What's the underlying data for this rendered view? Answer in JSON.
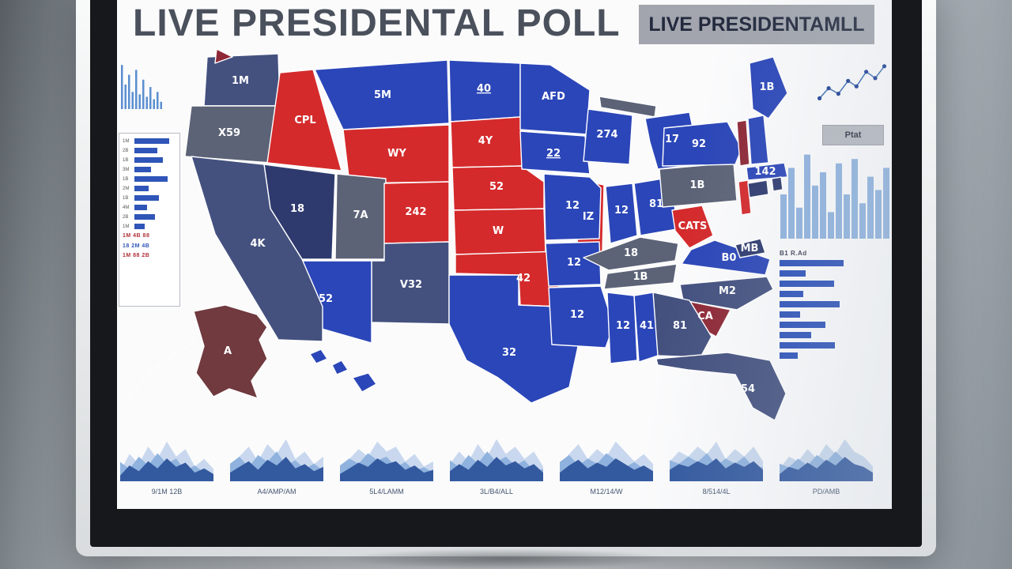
{
  "screen": {
    "title": "LIVE PRESIDENTAL POLL",
    "header_label": "LIVE PRESIDENTAMLL"
  },
  "map": {
    "palette": {
      "blue": "#2b46b8",
      "navy": "#2e3a6e",
      "slate": "#44517f",
      "gray": "#5c6377",
      "red": "#d42a2c",
      "maroon": "#8e2836",
      "brown": "#703a3f",
      "dashRed": "#b23a3a"
    },
    "states": [
      {
        "id": "WA",
        "label": "1M",
        "fill": "slate"
      },
      {
        "id": "XN",
        "label": "",
        "fill": "maroon"
      },
      {
        "id": "OR",
        "label": "X59",
        "fill": "gray"
      },
      {
        "id": "ID",
        "label": "CPL",
        "fill": "red"
      },
      {
        "id": "MT",
        "label": "5M",
        "fill": "blue"
      },
      {
        "id": "ND",
        "label": "40",
        "fill": "blue"
      },
      {
        "id": "SD",
        "label": "4Y",
        "fill": "red"
      },
      {
        "id": "WY",
        "label": "WY",
        "fill": "red"
      },
      {
        "id": "NV",
        "label": "18",
        "fill": "navy"
      },
      {
        "id": "UT",
        "label": "7A",
        "fill": "gray"
      },
      {
        "id": "CO",
        "label": "242",
        "fill": "red"
      },
      {
        "id": "NE",
        "label": "52",
        "fill": "red"
      },
      {
        "id": "KS",
        "label": "W",
        "fill": "red"
      },
      {
        "id": "OK",
        "label": "42",
        "fill": "red"
      },
      {
        "id": "NM",
        "label": "V32",
        "fill": "slate"
      },
      {
        "id": "AZ",
        "label": "52",
        "fill": "blue"
      },
      {
        "id": "CA",
        "label": "4K",
        "fill": "slate"
      },
      {
        "id": "TX",
        "label": "32",
        "fill": "blue"
      },
      {
        "id": "MN",
        "label": "AFD",
        "fill": "blue"
      },
      {
        "id": "IA",
        "label": "22",
        "fill": "blue"
      },
      {
        "id": "WI",
        "label": "274",
        "fill": "blue"
      },
      {
        "id": "UP",
        "label": "",
        "fill": "gray"
      },
      {
        "id": "MI",
        "label": "17",
        "fill": "blue"
      },
      {
        "id": "IL",
        "label": "IZ",
        "fill": "red"
      },
      {
        "id": "MO",
        "label": "12",
        "fill": "blue"
      },
      {
        "id": "AR",
        "label": "12",
        "fill": "blue"
      },
      {
        "id": "LA",
        "label": "12",
        "fill": "blue"
      },
      {
        "id": "IN",
        "label": "12",
        "fill": "blue"
      },
      {
        "id": "OH",
        "label": "81",
        "fill": "blue"
      },
      {
        "id": "KY",
        "label": "18",
        "fill": "gray"
      },
      {
        "id": "TN",
        "label": "1B",
        "fill": "gray"
      },
      {
        "id": "WV",
        "label": "CATS",
        "fill": "red"
      },
      {
        "id": "VA",
        "label": "B0",
        "fill": "blue"
      },
      {
        "id": "NC",
        "label": "M2",
        "fill": "slate"
      },
      {
        "id": "SC",
        "label": "CA",
        "fill": "maroon"
      },
      {
        "id": "GA",
        "label": "81",
        "fill": "slate"
      },
      {
        "id": "AL",
        "label": "41",
        "fill": "blue"
      },
      {
        "id": "MS",
        "label": "12",
        "fill": "blue"
      },
      {
        "id": "FL",
        "label": "54",
        "fill": "slate"
      },
      {
        "id": "PA",
        "label": "1B",
        "fill": "gray"
      },
      {
        "id": "NY",
        "label": "92",
        "fill": "blue"
      },
      {
        "id": "NJ",
        "label": "",
        "fill": "red"
      },
      {
        "id": "MD",
        "label": "MB",
        "fill": "navy"
      },
      {
        "id": "ME",
        "label": "1B",
        "fill": "blue"
      },
      {
        "id": "VT",
        "label": "",
        "fill": "maroon"
      },
      {
        "id": "NH",
        "label": "",
        "fill": "blue"
      },
      {
        "id": "MA",
        "label": "142",
        "fill": "blue"
      },
      {
        "id": "CT",
        "label": "",
        "fill": "navy"
      },
      {
        "id": "RI",
        "label": "",
        "fill": "navy"
      },
      {
        "id": "AK",
        "label": "A",
        "fill": "brown"
      },
      {
        "id": "HI",
        "label": "",
        "fill": "blue"
      }
    ]
  },
  "left_panel": {
    "spark_values": [
      0.9,
      0.5,
      0.7,
      0.35,
      0.8,
      0.3,
      0.6,
      0.25,
      0.45,
      0.2,
      0.35,
      0.15
    ],
    "legend_rows": [
      {
        "label": "1M",
        "value": 0.85
      },
      {
        "label": "2B",
        "value": 0.55
      },
      {
        "label": "1B",
        "value": 0.7
      },
      {
        "label": "3M",
        "value": 0.4
      },
      {
        "label": "1B",
        "value": 0.8
      },
      {
        "label": "2M",
        "value": 0.35
      },
      {
        "label": "1B",
        "value": 0.6
      },
      {
        "label": "4M",
        "value": 0.3
      },
      {
        "label": "2B",
        "value": 0.5
      },
      {
        "label": "1M",
        "value": 0.25
      }
    ],
    "footer_lines": [
      {
        "text": "1M 4B 88",
        "color": "#b03238"
      },
      {
        "text": "18 2M 4B",
        "color": "#2f55b8"
      },
      {
        "text": "1M 88 2B",
        "color": "#b03238"
      }
    ]
  },
  "right_panel": {
    "scatter_points": [
      [
        0.03,
        0.2
      ],
      [
        0.16,
        0.42
      ],
      [
        0.3,
        0.3
      ],
      [
        0.44,
        0.58
      ],
      [
        0.56,
        0.46
      ],
      [
        0.7,
        0.78
      ],
      [
        0.83,
        0.64
      ],
      [
        0.96,
        0.9
      ]
    ],
    "button_label": "Ptat",
    "histogram_values": [
      0.5,
      0.8,
      0.35,
      0.95,
      0.6,
      0.75,
      0.3,
      0.85,
      0.5,
      0.9,
      0.4,
      0.7,
      0.55,
      0.8
    ],
    "bar_chart": {
      "title": "B1 R.Ad",
      "values": [
        0.92,
        0.38,
        0.78,
        0.34,
        0.86,
        0.3,
        0.66,
        0.46,
        0.8,
        0.26
      ]
    }
  },
  "bottom_charts": {
    "items": [
      {
        "label": "9/1M 12B",
        "values": [
          0.2,
          0.55,
          0.35,
          0.7,
          0.45,
          0.8,
          0.5,
          0.65,
          0.3,
          0.45,
          0.25
        ]
      },
      {
        "label": "A4/AMP/AM",
        "values": [
          0.3,
          0.5,
          0.7,
          0.4,
          0.75,
          0.55,
          0.85,
          0.45,
          0.6,
          0.35,
          0.5
        ]
      },
      {
        "label": "5L4/LAMM",
        "values": [
          0.25,
          0.45,
          0.65,
          0.5,
          0.8,
          0.6,
          0.7,
          0.4,
          0.55,
          0.3,
          0.4
        ]
      },
      {
        "label": "3L/B4/ALL",
        "values": [
          0.35,
          0.6,
          0.4,
          0.75,
          0.5,
          0.85,
          0.55,
          0.7,
          0.45,
          0.6,
          0.3
        ]
      },
      {
        "label": "M12/14/W",
        "values": [
          0.3,
          0.55,
          0.75,
          0.45,
          0.65,
          0.5,
          0.8,
          0.6,
          0.4,
          0.55,
          0.35
        ]
      },
      {
        "label": "8/514/4L",
        "values": [
          0.4,
          0.6,
          0.5,
          0.7,
          0.55,
          0.8,
          0.45,
          0.65,
          0.5,
          0.7,
          0.4
        ]
      },
      {
        "label": "PD/AMB",
        "values": [
          0.25,
          0.5,
          0.4,
          0.65,
          0.45,
          0.75,
          0.55,
          0.85,
          0.6,
          0.5,
          0.3
        ]
      }
    ]
  }
}
